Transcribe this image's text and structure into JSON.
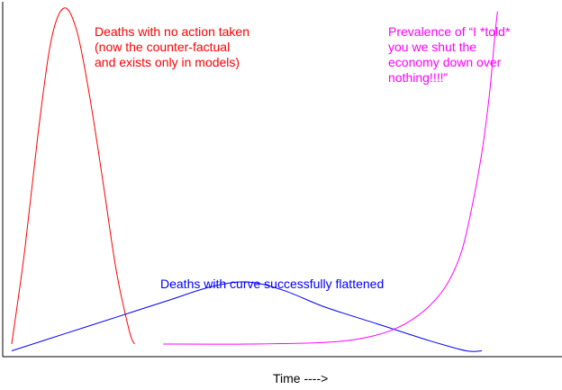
{
  "chart_data": {
    "type": "line",
    "title": "",
    "xlabel": "Time ---->",
    "ylabel": "",
    "grid": false,
    "xlim": [
      0,
      100
    ],
    "ylim": [
      0,
      100
    ],
    "annotations": [
      {
        "id": "red",
        "text": "Deaths with no action taken\n(now the counter-factual\nand exists only in models)",
        "color": "#ff0000"
      },
      {
        "id": "magenta",
        "text": "Prevalence of “I *told*\nyou we shut the\neconomy down over\nnothing!!!!”",
        "color": "#ff00ff"
      },
      {
        "id": "blue",
        "text": "Deaths with curve successfully flattened",
        "color": "#0000ff"
      }
    ],
    "series": [
      {
        "color": "#ff0000",
        "x": [
          0,
          2.5,
          5,
          7.5,
          10,
          12.5,
          15,
          17.5,
          20,
          22.5,
          23.5
        ],
        "y": [
          0,
          28,
          62,
          90,
          100,
          93,
          73,
          48,
          22,
          4,
          0
        ]
      },
      {
        "color": "#0000ff",
        "x": [
          0,
          10,
          20,
          30,
          38,
          45,
          52,
          60,
          70,
          80,
          87,
          90
        ],
        "y": [
          -2,
          3,
          8,
          13,
          17,
          18.5,
          16,
          11,
          6,
          1,
          -2,
          -2
        ]
      },
      {
        "color": "#ff00ff",
        "x": [
          29,
          45,
          60,
          68,
          74,
          79,
          83,
          86,
          88,
          90,
          91.5,
          92.5,
          93
        ],
        "y": [
          0,
          0,
          0.5,
          2,
          5,
          10,
          17,
          27,
          40,
          57,
          75,
          92,
          99
        ]
      }
    ]
  }
}
